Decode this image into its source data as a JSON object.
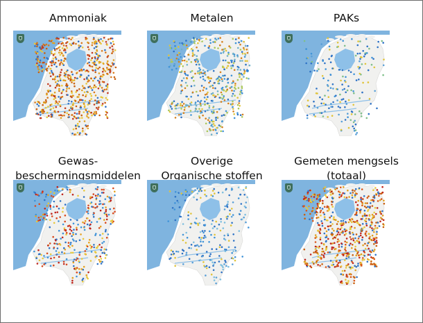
{
  "panels": [
    {
      "title_lines": [
        "Ammoniak"
      ],
      "density": 1.0,
      "palette": [
        "#c9600f",
        "#d9781a",
        "#e0a020",
        "#2f73c6",
        "#e8c83a",
        "#c23a20"
      ]
    },
    {
      "title_lines": [
        "Metalen"
      ],
      "density": 0.75,
      "palette": [
        "#2f73c6",
        "#6fb0c8",
        "#a9c85a",
        "#e0c43a",
        "#d5801c",
        "#3f93d8"
      ]
    },
    {
      "title_lines": [
        "PAKs"
      ],
      "density": 0.28,
      "palette": [
        "#2f73c6",
        "#2f73c6",
        "#3f93d8",
        "#5aa0d8",
        "#e0c43a",
        "#7fbf8a"
      ]
    },
    {
      "title_lines": [
        "Gewas-",
        "beschermingsmiddelen"
      ],
      "density": 0.55,
      "palette": [
        "#d94a1e",
        "#e6a21f",
        "#2f73c6",
        "#c0261d",
        "#e8c83a",
        "#3f93d8"
      ]
    },
    {
      "title_lines": [
        "Overige",
        "Organische stoffen"
      ],
      "density": 0.35,
      "palette": [
        "#2f73c6",
        "#2f73c6",
        "#3f93d8",
        "#5aa0d8",
        "#7fbfdf",
        "#e0c43a"
      ]
    },
    {
      "title_lines": [
        "Gemeten mengsels",
        "(totaal)"
      ],
      "density": 1.0,
      "palette": [
        "#c0261d",
        "#d9571a",
        "#e0a020",
        "#2f73c6",
        "#c9600f",
        "#e8c83a"
      ]
    }
  ],
  "colors": {
    "sea": "#7fb4df",
    "land": "#f1f1ef",
    "water": "#8ec0e8"
  },
  "icons": {
    "map_badge": "shield-logo-icon"
  }
}
